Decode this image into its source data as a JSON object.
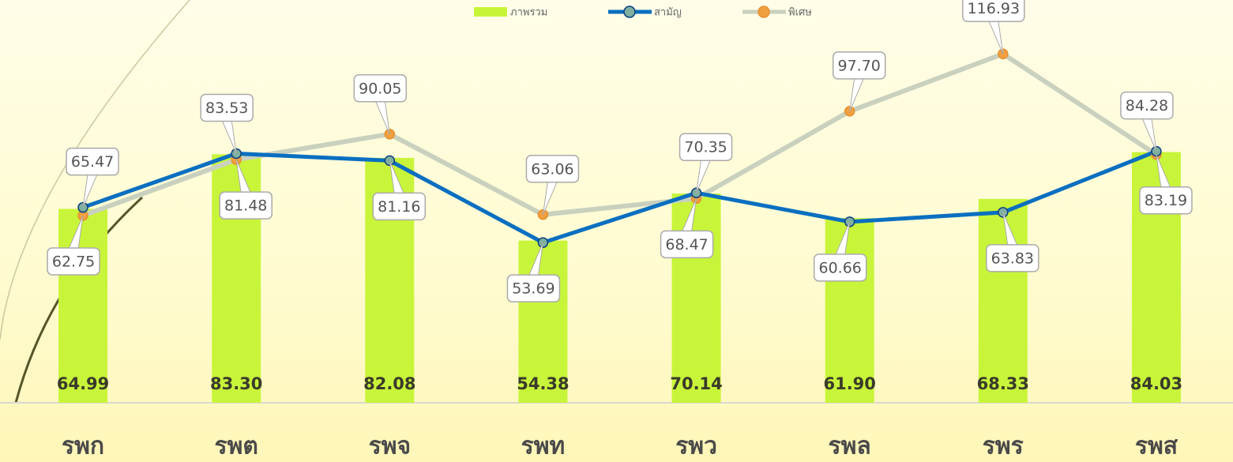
{
  "chart_data": {
    "type": "bar",
    "categories": [
      "รพก",
      "รพต",
      "รพจ",
      "รพท",
      "รพว",
      "รพล",
      "รพร",
      "รพส"
    ],
    "series": [
      {
        "name": "ภาพรวม",
        "type": "bar",
        "color": "#c8f53a",
        "values": [
          64.99,
          83.3,
          82.08,
          54.38,
          70.14,
          61.9,
          68.33,
          84.03
        ],
        "value_labels": [
          "64.99",
          "83.30",
          "82.08",
          "54.38",
          "70.14",
          "61.90",
          "68.33",
          "84.03"
        ]
      },
      {
        "name": "สามัญ",
        "type": "line",
        "color": "#0a6fc0",
        "marker_color": "#7fb0a0",
        "values": [
          65.47,
          83.53,
          81.16,
          53.69,
          70.35,
          60.66,
          63.83,
          84.28
        ],
        "value_labels": [
          "65.47",
          "83.53",
          "81.16",
          "53.69",
          "70.35",
          "60.66",
          "63.83",
          "84.28"
        ]
      },
      {
        "name": "พิเศษ",
        "type": "line",
        "color": "#c9d1be",
        "marker_color": "#f0a040",
        "values": [
          62.75,
          81.48,
          90.05,
          63.06,
          68.47,
          97.7,
          116.93,
          83.19
        ],
        "value_labels": [
          "62.75",
          "81.48",
          "90.05",
          "63.06",
          "68.47",
          "97.70",
          "116.93",
          "83.19"
        ]
      }
    ],
    "ylim": [
      0,
      135
    ],
    "legend": "top"
  }
}
